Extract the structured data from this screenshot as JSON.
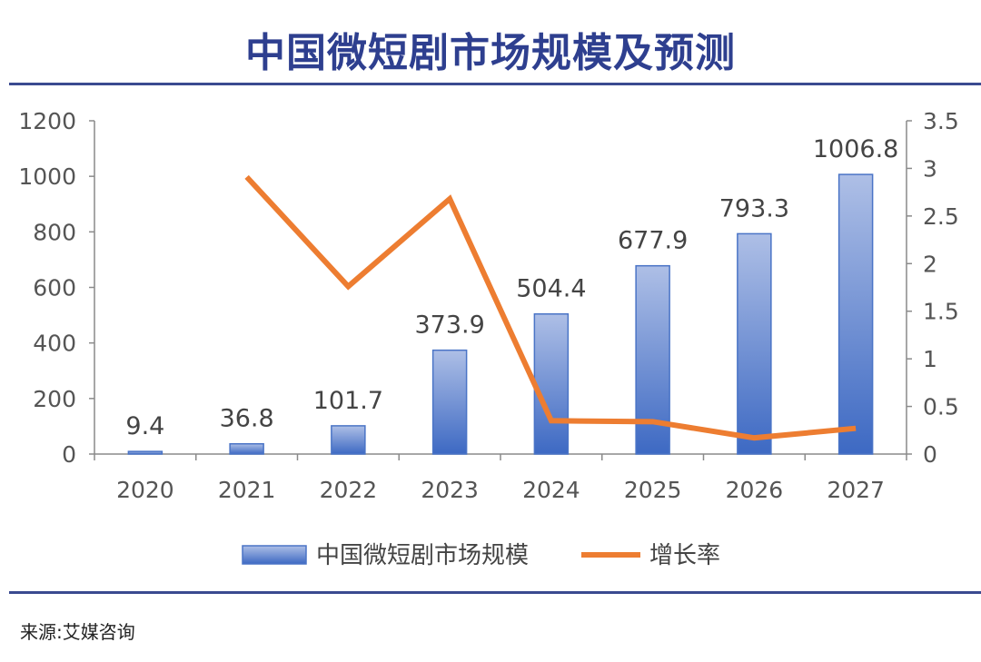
{
  "title": "中国微短剧市场规模及预测",
  "source": "来源:艾媒咨询",
  "chart_data": {
    "type": "bar+line",
    "categories": [
      "2020",
      "2021",
      "2022",
      "2023",
      "2024",
      "2025",
      "2026",
      "2027"
    ],
    "series": [
      {
        "name": "中国微短剧市场规模",
        "type": "bar",
        "axis": "left",
        "values": [
          9.4,
          36.8,
          101.7,
          373.9,
          504.4,
          677.9,
          793.3,
          1006.8
        ],
        "labels": [
          "9.4",
          "36.8",
          "101.7",
          "373.9",
          "504.4",
          "677.9",
          "793.3",
          "1006.8"
        ],
        "color": "#4472c4"
      },
      {
        "name": "增长率",
        "type": "line",
        "axis": "right",
        "values": [
          null,
          2.91,
          1.76,
          2.68,
          0.35,
          0.34,
          0.17,
          0.27
        ],
        "color": "#ed7d31"
      }
    ],
    "y_left": {
      "ylim": [
        0,
        1200
      ],
      "ticks": [
        "0",
        "200",
        "400",
        "600",
        "800",
        "1000",
        "1200"
      ]
    },
    "y_right": {
      "ylim": [
        0,
        3.5
      ],
      "ticks": [
        "0",
        "0.5",
        "1",
        "1.5",
        "2",
        "2.5",
        "3",
        "3.5"
      ]
    },
    "legend": "bottom",
    "grid": false
  }
}
